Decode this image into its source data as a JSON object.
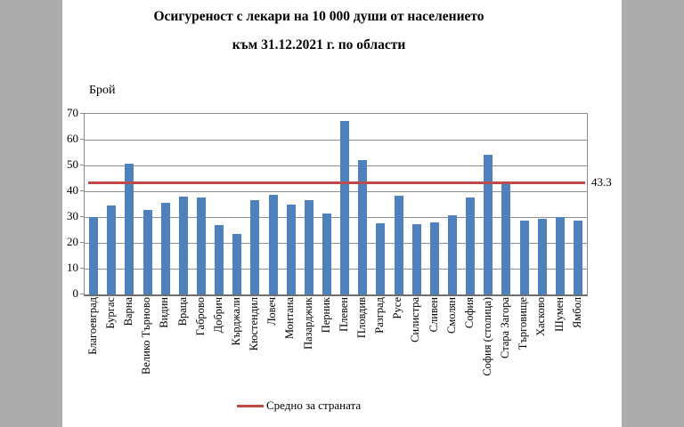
{
  "window": {
    "background_color": "#ACACAC",
    "card_color": "#FFFFFF"
  },
  "chart_data": {
    "type": "bar",
    "title_lines": [
      "Осигуреност с лекари на 10 000 души от населението",
      "към 31.12.2021 г. по области"
    ],
    "ylabel": "Брой",
    "xlabel": "",
    "ylim": [
      0,
      70
    ],
    "ytick_step": 10,
    "grid": true,
    "legend_position": "bottom",
    "bar_color": "#4F81BD",
    "grid_color": "#8C8C8C",
    "categories": [
      "Благоевград",
      "Бургас",
      "Варна",
      "Велико Търново",
      "Видин",
      "Враца",
      "Габрово",
      "Добрич",
      "Кърджали",
      "Кюстендил",
      "Ловеч",
      "Монтана",
      "Пазарджик",
      "Перник",
      "Плевен",
      "Пловдив",
      "Разград",
      "Русе",
      "Силистра",
      "Сливен",
      "Смолян",
      "София",
      "София (столица)",
      "Стара Загора",
      "Търговище",
      "Хасково",
      "Шумен",
      "Ямбол"
    ],
    "values": [
      30.0,
      34.6,
      50.6,
      32.8,
      35.4,
      37.9,
      37.5,
      26.8,
      23.4,
      36.4,
      38.6,
      34.9,
      36.6,
      31.3,
      67.3,
      52.2,
      27.5,
      38.4,
      27.2,
      28.0,
      30.8,
      37.5,
      54.3,
      42.9,
      28.7,
      29.3,
      29.9,
      28.6
    ],
    "average_line": {
      "value": 43.3,
      "label": "43.3",
      "legend_label": "Средно за страната",
      "color": "#BE4B48"
    }
  }
}
